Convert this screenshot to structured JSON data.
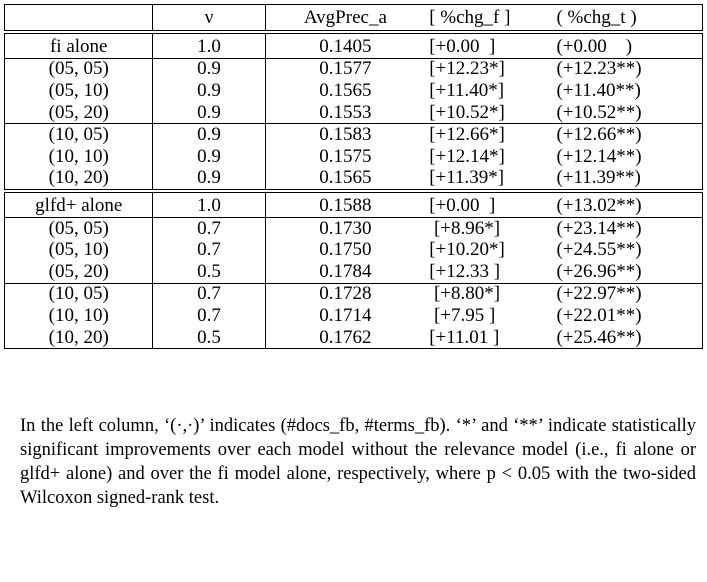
{
  "table": {
    "headers": [
      "",
      "ν",
      "AvgPrec_a",
      "[ %chg_f ]",
      "( %chg_t )"
    ],
    "rows": [
      [
        "fi alone",
        "1.0",
        "0.1405",
        "[+0.00  ]",
        "(+0.00    )"
      ],
      [
        "(05, 05)",
        "0.9",
        "0.1577",
        "[+12.23*]",
        "(+12.23**)"
      ],
      [
        "(05, 10)",
        "0.9",
        "0.1565",
        "[+11.40*]",
        "(+11.40**)"
      ],
      [
        "(05, 20)",
        "0.9",
        "0.1553",
        "[+10.52*]",
        "(+10.52**)"
      ],
      [
        "(10, 05)",
        "0.9",
        "0.1583",
        "[+12.66*]",
        "(+12.66**)"
      ],
      [
        "(10, 10)",
        "0.9",
        "0.1575",
        "[+12.14*]",
        "(+12.14**)"
      ],
      [
        "(10, 20)",
        "0.9",
        "0.1565",
        "[+11.39*]",
        "(+11.39**)"
      ],
      [
        "glfd+ alone",
        "1.0",
        "0.1588",
        "[+0.00  ]",
        "(+13.02**)"
      ],
      [
        "(05, 05)",
        "0.7",
        "0.1730",
        " [+8.96*]",
        "(+23.14**)"
      ],
      [
        "(05, 10)",
        "0.7",
        "0.1750",
        "[+10.20*]",
        "(+24.55**)"
      ],
      [
        "(05, 20)",
        "0.5",
        "0.1784",
        "[+12.33 ]",
        "(+26.96**)"
      ],
      [
        "(10, 05)",
        "0.7",
        "0.1728",
        " [+8.80*]",
        "(+22.97**)"
      ],
      [
        "(10, 10)",
        "0.7",
        "0.1714",
        " [+7.95 ]",
        "(+22.01**)"
      ],
      [
        "(10, 20)",
        "0.5",
        "0.1762",
        "[+11.01 ]",
        "(+25.46**)"
      ]
    ]
  },
  "caption": "In the left column, ‘(·,·)’ indicates (#docs_fb, #terms_fb). ‘*’ and ‘**’ indicate statistically significant improvements over each model without the relevance model (i.e., fi alone or glfd+ alone) and over the fi model alone, respectively, where p < 0.05 with the two-sided Wilcoxon signed-rank test."
}
